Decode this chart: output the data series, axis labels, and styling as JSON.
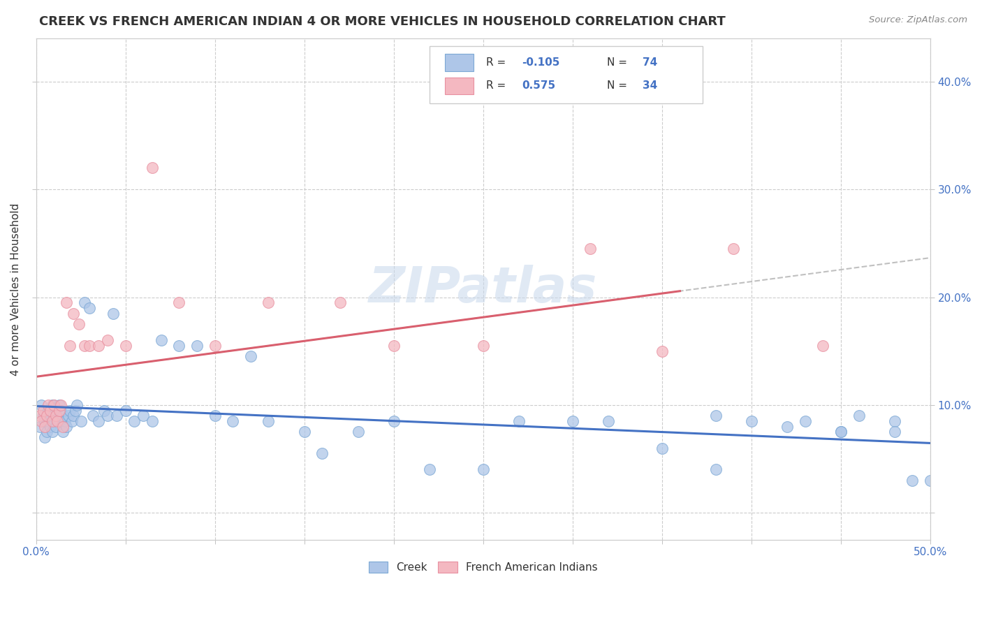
{
  "title": "CREEK VS FRENCH AMERICAN INDIAN 4 OR MORE VEHICLES IN HOUSEHOLD CORRELATION CHART",
  "source": "Source: ZipAtlas.com",
  "ylabel": "4 or more Vehicles in Household",
  "xlim": [
    0.0,
    0.5
  ],
  "ylim": [
    -0.025,
    0.44
  ],
  "ytick_vals": [
    0.0,
    0.1,
    0.2,
    0.3,
    0.4
  ],
  "ytick_labels_right": [
    "",
    "10.0%",
    "20.0%",
    "30.0%",
    "40.0%"
  ],
  "xtick_vals": [
    0.0,
    0.05,
    0.1,
    0.15,
    0.2,
    0.25,
    0.3,
    0.35,
    0.4,
    0.45,
    0.5
  ],
  "xtick_labels": [
    "0.0%",
    "",
    "",
    "",
    "",
    "",
    "",
    "",
    "",
    "",
    "50.0%"
  ],
  "creek_R": -0.105,
  "creek_N": 74,
  "french_R": 0.575,
  "french_N": 34,
  "creek_color": "#aec6e8",
  "creek_edge_color": "#7ca8d5",
  "french_color": "#f4b8c1",
  "french_edge_color": "#e890a0",
  "creek_line_color": "#4472c4",
  "french_line_color": "#d95f6e",
  "dash_line_color": "#c0c0c0",
  "label_color": "#4472c4",
  "watermark": "ZIPatlas",
  "creek_x": [
    0.002,
    0.003,
    0.004,
    0.005,
    0.005,
    0.006,
    0.006,
    0.007,
    0.007,
    0.008,
    0.008,
    0.009,
    0.009,
    0.01,
    0.01,
    0.01,
    0.011,
    0.011,
    0.012,
    0.013,
    0.013,
    0.014,
    0.015,
    0.015,
    0.016,
    0.017,
    0.018,
    0.019,
    0.02,
    0.021,
    0.022,
    0.023,
    0.025,
    0.027,
    0.03,
    0.032,
    0.035,
    0.038,
    0.04,
    0.043,
    0.045,
    0.05,
    0.055,
    0.06,
    0.065,
    0.07,
    0.08,
    0.09,
    0.1,
    0.11,
    0.12,
    0.13,
    0.15,
    0.16,
    0.18,
    0.2,
    0.22,
    0.25,
    0.27,
    0.3,
    0.32,
    0.35,
    0.38,
    0.4,
    0.43,
    0.45,
    0.46,
    0.48,
    0.49,
    0.5,
    0.38,
    0.42,
    0.45,
    0.48
  ],
  "creek_y": [
    0.08,
    0.1,
    0.09,
    0.085,
    0.07,
    0.075,
    0.09,
    0.085,
    0.095,
    0.08,
    0.09,
    0.075,
    0.1,
    0.09,
    0.085,
    0.1,
    0.095,
    0.08,
    0.09,
    0.085,
    0.1,
    0.095,
    0.075,
    0.09,
    0.085,
    0.08,
    0.09,
    0.095,
    0.085,
    0.09,
    0.095,
    0.1,
    0.085,
    0.195,
    0.19,
    0.09,
    0.085,
    0.095,
    0.09,
    0.185,
    0.09,
    0.095,
    0.085,
    0.09,
    0.085,
    0.16,
    0.155,
    0.155,
    0.09,
    0.085,
    0.145,
    0.085,
    0.075,
    0.055,
    0.075,
    0.085,
    0.04,
    0.04,
    0.085,
    0.085,
    0.085,
    0.06,
    0.04,
    0.085,
    0.085,
    0.075,
    0.09,
    0.085,
    0.03,
    0.03,
    0.09,
    0.08,
    0.075,
    0.075
  ],
  "french_x": [
    0.002,
    0.003,
    0.004,
    0.005,
    0.006,
    0.007,
    0.008,
    0.009,
    0.01,
    0.011,
    0.012,
    0.013,
    0.014,
    0.015,
    0.017,
    0.019,
    0.021,
    0.024,
    0.027,
    0.03,
    0.035,
    0.04,
    0.05,
    0.065,
    0.08,
    0.1,
    0.13,
    0.17,
    0.2,
    0.25,
    0.31,
    0.35,
    0.39,
    0.44
  ],
  "french_y": [
    0.09,
    0.085,
    0.095,
    0.08,
    0.09,
    0.1,
    0.095,
    0.085,
    0.1,
    0.09,
    0.085,
    0.095,
    0.1,
    0.08,
    0.195,
    0.155,
    0.185,
    0.175,
    0.155,
    0.155,
    0.155,
    0.16,
    0.155,
    0.32,
    0.195,
    0.155,
    0.195,
    0.195,
    0.155,
    0.155,
    0.245,
    0.15,
    0.245,
    0.155
  ]
}
